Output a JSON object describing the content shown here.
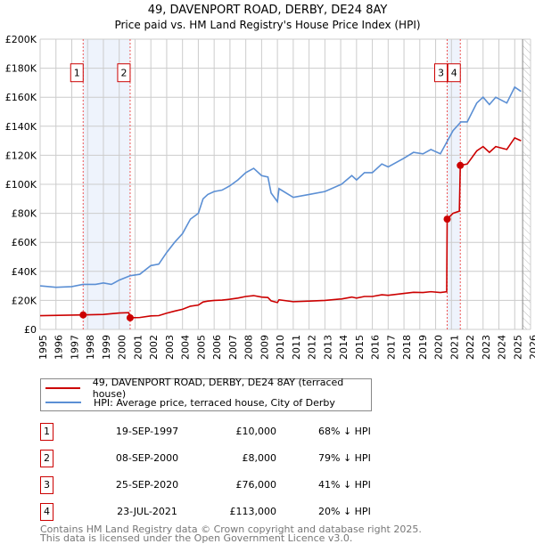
{
  "chart_data": {
    "type": "line",
    "title": "49, DAVENPORT ROAD, DERBY, DE24 8AY",
    "subtitle": "Price paid vs. HM Land Registry's House Price Index (HPI)",
    "xlim": [
      1995,
      2026
    ],
    "ylim": [
      0,
      200000
    ],
    "x_ticks": [
      "1995",
      "1996",
      "1997",
      "1998",
      "1999",
      "2000",
      "2001",
      "2002",
      "2003",
      "2004",
      "2005",
      "2006",
      "2007",
      "2008",
      "2009",
      "2010",
      "2011",
      "2012",
      "2013",
      "2014",
      "2015",
      "2016",
      "2017",
      "2018",
      "2019",
      "2020",
      "2021",
      "2022",
      "2023",
      "2024",
      "2025",
      "2026"
    ],
    "y_ticks": [
      {
        "v": 0,
        "label": "£0"
      },
      {
        "v": 20000,
        "label": "£20K"
      },
      {
        "v": 40000,
        "label": "£40K"
      },
      {
        "v": 60000,
        "label": "£60K"
      },
      {
        "v": 80000,
        "label": "£80K"
      },
      {
        "v": 100000,
        "label": "£100K"
      },
      {
        "v": 120000,
        "label": "£120K"
      },
      {
        "v": 140000,
        "label": "£140K"
      },
      {
        "v": 160000,
        "label": "£160K"
      },
      {
        "v": 180000,
        "label": "£180K"
      },
      {
        "v": 200000,
        "label": "£200K"
      }
    ],
    "grid": true,
    "forecast_from": 2025.5,
    "series": [
      {
        "name": "49, DAVENPORT ROAD, DERBY, DE24 8AY (terraced house)",
        "color": "#cc0000",
        "points": [
          [
            1995,
            9500
          ],
          [
            1997.72,
            10000
          ],
          [
            1999,
            10300
          ],
          [
            2000,
            11300
          ],
          [
            2000.6,
            11500
          ],
          [
            2000.69,
            8000
          ],
          [
            2001.3,
            8200
          ],
          [
            2002,
            9300
          ],
          [
            2002.5,
            9500
          ],
          [
            2003,
            11200
          ],
          [
            2003.5,
            12600
          ],
          [
            2004,
            13900
          ],
          [
            2004.5,
            16000
          ],
          [
            2005,
            16800
          ],
          [
            2005.3,
            18900
          ],
          [
            2005.6,
            19500
          ],
          [
            2006,
            20000
          ],
          [
            2006.5,
            20200
          ],
          [
            2007,
            20800
          ],
          [
            2007.5,
            21600
          ],
          [
            2008,
            22700
          ],
          [
            2008.5,
            23300
          ],
          [
            2009,
            22300
          ],
          [
            2009.4,
            22000
          ],
          [
            2009.6,
            19700
          ],
          [
            2010,
            18500
          ],
          [
            2010.1,
            20400
          ],
          [
            2011,
            19100
          ],
          [
            2012,
            19500
          ],
          [
            2013,
            20000
          ],
          [
            2014.05,
            21000
          ],
          [
            2014.7,
            22300
          ],
          [
            2015,
            21600
          ],
          [
            2015.5,
            22700
          ],
          [
            2016,
            22700
          ],
          [
            2016.6,
            23900
          ],
          [
            2017,
            23500
          ],
          [
            2018,
            24800
          ],
          [
            2018.6,
            25600
          ],
          [
            2019.2,
            25400
          ],
          [
            2019.7,
            26000
          ],
          [
            2020.3,
            25400
          ],
          [
            2020.7,
            26000
          ],
          [
            2020.73,
            76000
          ],
          [
            2021.1,
            80000
          ],
          [
            2021.5,
            81500
          ],
          [
            2021.56,
            113000
          ],
          [
            2022,
            114000
          ],
          [
            2022.6,
            123000
          ],
          [
            2023,
            126000
          ],
          [
            2023.4,
            122000
          ],
          [
            2023.8,
            126000
          ],
          [
            2024.5,
            124000
          ],
          [
            2025,
            132000
          ],
          [
            2025.4,
            130000
          ]
        ]
      },
      {
        "name": "HPI: Average price, terraced house, City of Derby",
        "color": "#5b8fd4",
        "points": [
          [
            1995,
            30000
          ],
          [
            1996,
            29000
          ],
          [
            1997,
            29500
          ],
          [
            1997.7,
            31000
          ],
          [
            1998.5,
            31000
          ],
          [
            1999,
            32000
          ],
          [
            1999.5,
            31000
          ],
          [
            2000,
            34000
          ],
          [
            2000.7,
            37000
          ],
          [
            2001.3,
            38000
          ],
          [
            2002,
            44000
          ],
          [
            2002.5,
            45000
          ],
          [
            2003,
            53000
          ],
          [
            2003.5,
            60000
          ],
          [
            2004,
            66000
          ],
          [
            2004.5,
            76000
          ],
          [
            2005,
            80000
          ],
          [
            2005.3,
            90000
          ],
          [
            2005.6,
            93000
          ],
          [
            2006,
            95000
          ],
          [
            2006.5,
            96000
          ],
          [
            2007,
            99000
          ],
          [
            2007.5,
            103000
          ],
          [
            2008,
            108000
          ],
          [
            2008.5,
            111000
          ],
          [
            2009,
            106000
          ],
          [
            2009.4,
            105000
          ],
          [
            2009.6,
            94000
          ],
          [
            2010,
            88000
          ],
          [
            2010.1,
            97000
          ],
          [
            2011,
            91000
          ],
          [
            2012,
            93000
          ],
          [
            2013,
            95000
          ],
          [
            2014.05,
            100000
          ],
          [
            2014.7,
            106000
          ],
          [
            2015,
            103000
          ],
          [
            2015.5,
            108000
          ],
          [
            2016,
            108000
          ],
          [
            2016.6,
            114000
          ],
          [
            2017,
            112000
          ],
          [
            2018,
            118000
          ],
          [
            2018.6,
            122000
          ],
          [
            2019.2,
            121000
          ],
          [
            2019.7,
            124000
          ],
          [
            2020.3,
            121000
          ],
          [
            2020.7,
            129000
          ],
          [
            2021.1,
            137000
          ],
          [
            2021.6,
            143000
          ],
          [
            2022,
            143000
          ],
          [
            2022.6,
            156000
          ],
          [
            2023,
            160000
          ],
          [
            2023.4,
            155000
          ],
          [
            2023.8,
            160000
          ],
          [
            2024.5,
            156000
          ],
          [
            2025,
            167000
          ],
          [
            2025.4,
            164000
          ]
        ]
      }
    ],
    "sales": [
      {
        "label": "1",
        "x": 1997.72,
        "y": 10000,
        "date": "19-SEP-1997",
        "price": "£10,000",
        "hpi": "68% ↓ HPI"
      },
      {
        "label": "2",
        "x": 2000.69,
        "y": 8000,
        "date": "08-SEP-2000",
        "price": "£8,000",
        "hpi": "79% ↓ HPI"
      },
      {
        "label": "3",
        "x": 2020.73,
        "y": 76000,
        "date": "25-SEP-2020",
        "price": "£76,000",
        "hpi": "41% ↓ HPI"
      },
      {
        "label": "4",
        "x": 2021.56,
        "y": 113000,
        "date": "23-JUL-2021",
        "price": "£113,000",
        "hpi": "20% ↓ HPI"
      }
    ],
    "shaded_ranges": [
      [
        1997.72,
        2000.69
      ],
      [
        2020.73,
        2021.56
      ]
    ]
  },
  "footer": {
    "line1": "Contains HM Land Registry data © Crown copyright and database right 2025.",
    "line2": "This data is licensed under the Open Government Licence v3.0."
  }
}
